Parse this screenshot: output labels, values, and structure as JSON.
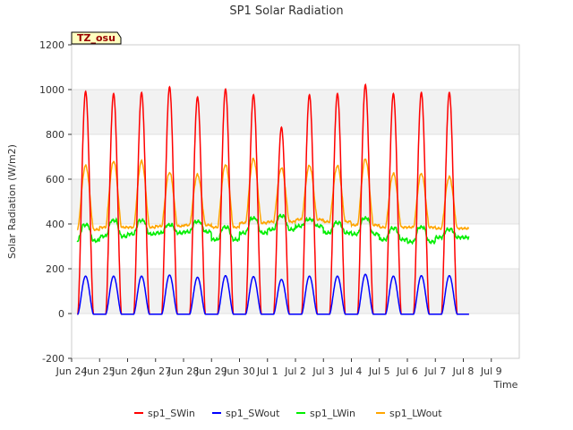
{
  "chart_data": {
    "type": "line",
    "title": "SP1 Solar Radiation",
    "xlabel": "Time",
    "ylabel": "Solar Radiation (W/m2)",
    "badge": "TZ_osu",
    "ylim": [
      -200,
      1200
    ],
    "yticks": [
      -200,
      0,
      200,
      400,
      600,
      800,
      1000,
      1200
    ],
    "xlim": [
      0,
      16
    ],
    "xtick_labels": [
      "Jun 24",
      "Jun 25",
      "Jun 26",
      "Jun 27",
      "Jun 28",
      "Jun 29",
      "Jun 30",
      "Jul 1",
      "Jul 2",
      "Jul 3",
      "Jul 4",
      "Jul 5",
      "Jul 6",
      "Jul 7",
      "Jul 8",
      "Jul 9"
    ],
    "grid": true,
    "legend_position": "bottom",
    "days": 14,
    "series": [
      {
        "name": "sp1_SWin",
        "color": "#ff0000",
        "daily_peak": [
          995,
          985,
          990,
          1015,
          970,
          1005,
          980,
          835,
          980,
          985,
          1025,
          985,
          990,
          990
        ]
      },
      {
        "name": "sp1_SWout",
        "color": "#0000ff",
        "daily_peak": [
          170,
          170,
          170,
          175,
          165,
          172,
          168,
          155,
          170,
          170,
          178,
          170,
          172,
          172
        ]
      },
      {
        "name": "sp1_LWin",
        "color": "#00ee00",
        "night": [
          325,
          345,
          355,
          360,
          365,
          330,
          360,
          375,
          390,
          360,
          355,
          330,
          320,
          340
        ],
        "day": [
          395,
          415,
          415,
          395,
          410,
          385,
          425,
          435,
          420,
          405,
          425,
          380,
          385,
          375
        ]
      },
      {
        "name": "sp1_LWout",
        "color": "#ffa500",
        "night": [
          375,
          385,
          385,
          390,
          395,
          385,
          405,
          410,
          420,
          410,
          395,
          385,
          385,
          380
        ],
        "day": [
          660,
          680,
          680,
          630,
          620,
          665,
          690,
          650,
          660,
          660,
          690,
          625,
          625,
          610
        ]
      }
    ]
  }
}
